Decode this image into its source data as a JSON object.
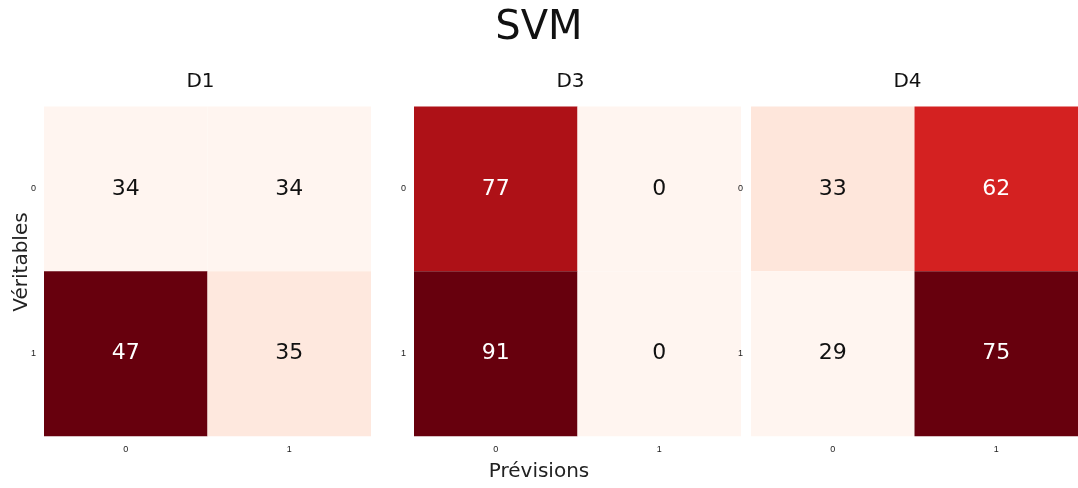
{
  "chart_data": [
    {
      "type": "heatmap",
      "title": "D1",
      "ylabel": "Véritables",
      "categories": [
        "0",
        "1"
      ],
      "y_categories": [
        "0",
        "1"
      ],
      "cells": [
        [
          34,
          34
        ],
        [
          47,
          35
        ]
      ],
      "data_labels": true
    },
    {
      "type": "heatmap",
      "title": "D3",
      "xlabel": "Prévisions",
      "annotations": [
        "SVM"
      ],
      "categories": [
        "0",
        "1"
      ],
      "y_categories": [
        "0",
        "1"
      ],
      "cells": [
        [
          77,
          0
        ],
        [
          91,
          0
        ]
      ],
      "data_labels": true
    },
    {
      "type": "heatmap",
      "title": "D4",
      "categories": [
        "0",
        "1"
      ],
      "y_categories": [
        "0",
        "1"
      ],
      "cells": [
        [
          33,
          62
        ],
        [
          29,
          75
        ]
      ],
      "data_labels": true
    }
  ]
}
